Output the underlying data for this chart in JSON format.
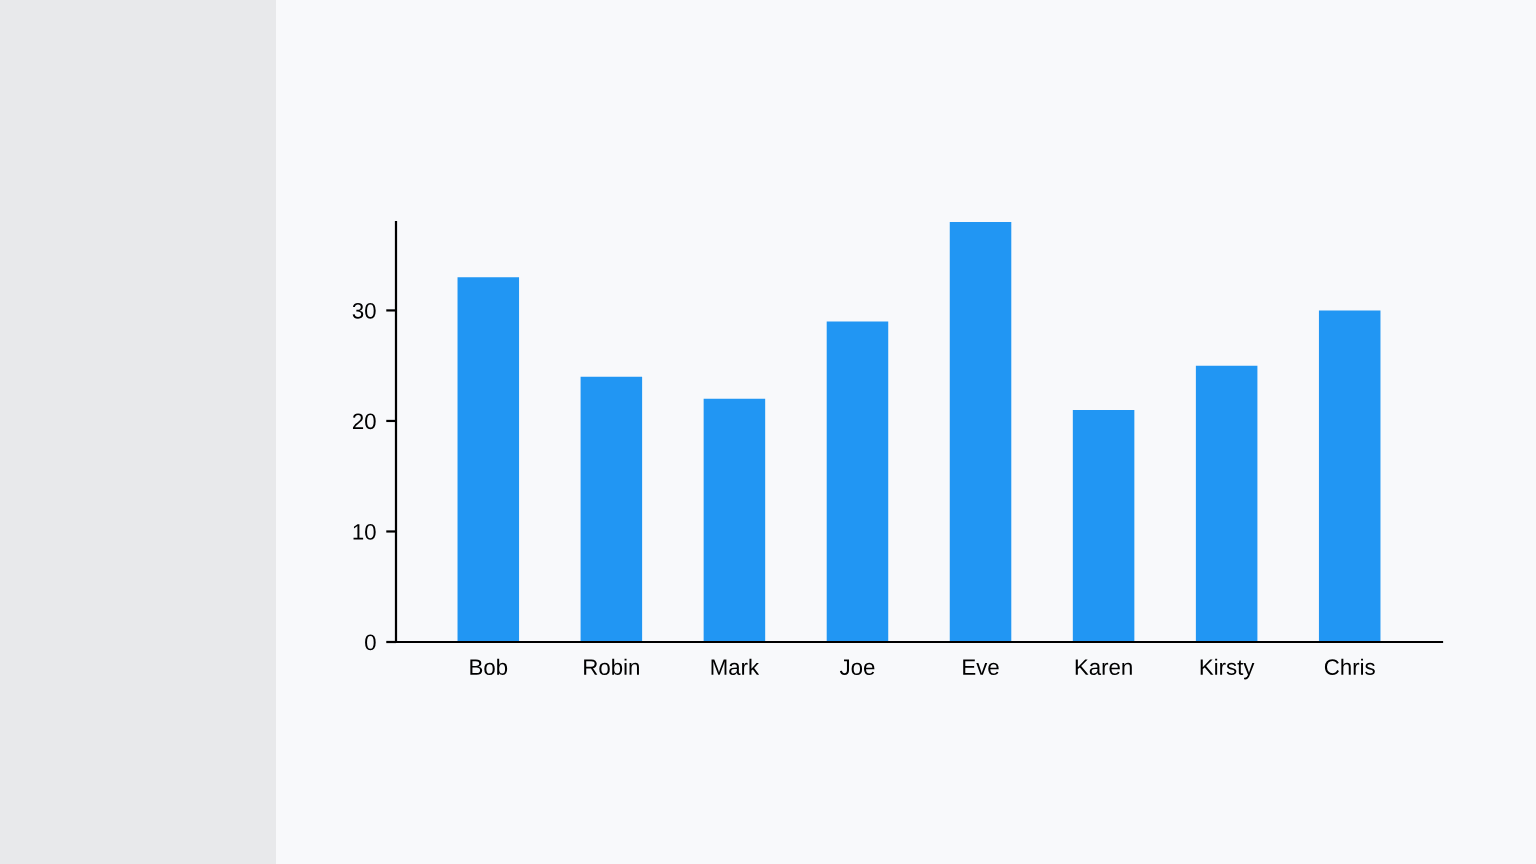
{
  "chart_data": {
    "type": "bar",
    "categories": [
      "Bob",
      "Robin",
      "Mark",
      "Joe",
      "Eve",
      "Karen",
      "Kirsty",
      "Chris"
    ],
    "values": [
      33,
      24,
      22,
      29,
      38,
      21,
      25,
      30
    ],
    "color": "#2196f3",
    "ylim": [
      0,
      38
    ],
    "yticks": [
      0,
      10,
      20,
      30
    ],
    "grid": false,
    "legend": false
  }
}
